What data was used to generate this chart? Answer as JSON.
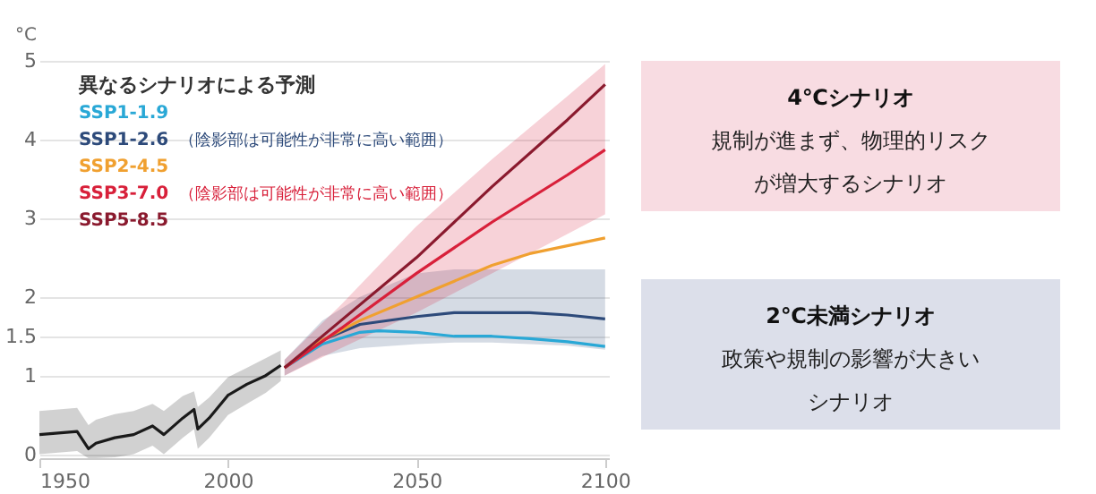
{
  "chart_data": [
    {
      "type": "line",
      "ylabel": "°C",
      "legend_title": "異なるシナリオによる予測",
      "legend": "top left",
      "grid": "y",
      "xlim": [
        1950,
        2101
      ],
      "xticks": [
        1950,
        2000,
        2050,
        2100
      ],
      "ylim": [
        -0.05,
        5
      ],
      "yticks": [
        0,
        1,
        1.5,
        2,
        3,
        4,
        5
      ],
      "annotations": [
        "（陰影部は可能性が非常に高い範囲）",
        "（陰影部は可能性が非常に高い範囲）"
      ],
      "series": [
        {
          "color": "#1a1a1a",
          "x": [
            1950,
            1955,
            1960,
            1963,
            1965,
            1970,
            1975,
            1980,
            1983,
            1988,
            1991,
            1992,
            1995,
            2000,
            2005,
            2010,
            2014
          ],
          "values": [
            0.25,
            0.27,
            0.29,
            0.07,
            0.14,
            0.21,
            0.25,
            0.36,
            0.25,
            0.46,
            0.57,
            0.32,
            0.46,
            0.75,
            0.89,
            1.0,
            1.13
          ],
          "lower": [
            0.0,
            0.02,
            0.04,
            -0.05,
            -0.05,
            -0.04,
            0.0,
            0.11,
            0.0,
            0.21,
            0.32,
            0.07,
            0.21,
            0.5,
            0.64,
            0.78,
            0.93
          ],
          "upper": [
            0.55,
            0.57,
            0.59,
            0.37,
            0.44,
            0.51,
            0.55,
            0.64,
            0.55,
            0.74,
            0.8,
            0.6,
            0.72,
            0.98,
            1.1,
            1.22,
            1.32
          ]
        },
        {
          "name": "SSP1-1.9",
          "color": "#29a8d6",
          "x": [
            2015,
            2025,
            2035,
            2040,
            2050,
            2060,
            2070,
            2080,
            2090,
            2100
          ],
          "values": [
            1.1,
            1.4,
            1.55,
            1.57,
            1.55,
            1.5,
            1.5,
            1.47,
            1.43,
            1.37
          ]
        },
        {
          "name": "SSP1-2.6",
          "color": "#2d4a7a",
          "x": [
            2015,
            2025,
            2035,
            2050,
            2060,
            2070,
            2080,
            2090,
            2100
          ],
          "values": [
            1.1,
            1.45,
            1.65,
            1.75,
            1.8,
            1.8,
            1.8,
            1.77,
            1.72
          ],
          "lower": [
            1.0,
            1.25,
            1.35,
            1.4,
            1.42,
            1.42,
            1.4,
            1.38,
            1.33
          ],
          "upper": [
            1.2,
            1.7,
            2.0,
            2.3,
            2.35,
            2.35,
            2.35,
            2.35,
            2.35
          ]
        },
        {
          "name": "SSP2-4.5",
          "color": "#f0a030",
          "x": [
            2015,
            2025,
            2035,
            2050,
            2060,
            2070,
            2080,
            2090,
            2100
          ],
          "values": [
            1.1,
            1.45,
            1.7,
            2.0,
            2.2,
            2.4,
            2.55,
            2.65,
            2.75
          ]
        },
        {
          "name": "SSP3-7.0",
          "color": "#d8203a",
          "x": [
            2015,
            2030,
            2050,
            2070,
            2090,
            2100
          ],
          "values": [
            1.1,
            1.6,
            2.3,
            2.95,
            3.55,
            3.87
          ],
          "lower": [
            1.0,
            1.35,
            1.8,
            2.3,
            2.8,
            3.05
          ],
          "upper": [
            1.2,
            1.9,
            2.9,
            3.75,
            4.55,
            4.96
          ]
        },
        {
          "name": "SSP5-8.5",
          "color": "#8a1a2e",
          "x": [
            2015,
            2030,
            2050,
            2070,
            2090,
            2100
          ],
          "values": [
            1.1,
            1.7,
            2.5,
            3.4,
            4.25,
            4.7
          ]
        }
      ]
    },
    {
      "type": "other",
      "title": "4℃シナリオ",
      "annotations": [
        "規制が進まず、物理的リスク",
        "が増大するシナリオ"
      ],
      "color": "#f8dce2"
    },
    {
      "type": "other",
      "title": "2℃未満シナリオ",
      "annotations": [
        "政策や規制の影響が大きい",
        "シナリオ"
      ],
      "color": "#dcdfea"
    }
  ]
}
